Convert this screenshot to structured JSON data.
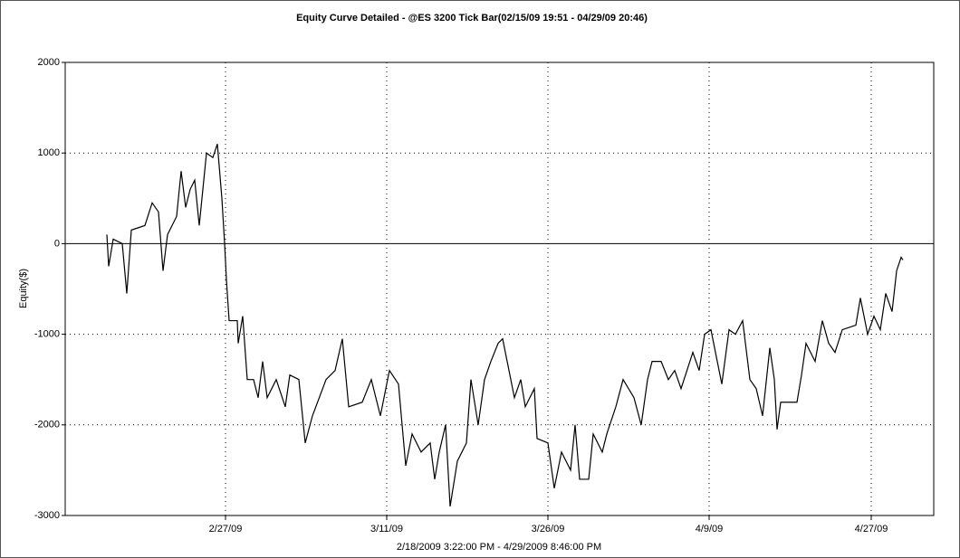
{
  "chart_data": {
    "type": "line",
    "title": "Equity Curve Detailed - @ES 3200 Tick Bar(02/15/09 19:51 - 04/29/09 20:46)",
    "xlabel": "2/18/2009 3:22:00 PM - 4/29/2009 8:46:00 PM",
    "ylabel": "Equity($)",
    "xlim": [
      0,
      959
    ],
    "xticks": [
      {
        "value": 177,
        "label": "2/27/09"
      },
      {
        "value": 355,
        "label": "3/11/09"
      },
      {
        "value": 533,
        "label": "3/26/09"
      },
      {
        "value": 711,
        "label": "4/9/09"
      },
      {
        "value": 890,
        "label": "4/27/09"
      }
    ],
    "ylim": [
      -3000,
      2000
    ],
    "yticks": [
      -3000,
      -2000,
      -1000,
      0,
      1000,
      2000
    ],
    "grid": true,
    "zero_line": true,
    "series": [
      {
        "name": "Equity",
        "color": "#000000",
        "x": [
          46,
          48,
          53,
          63,
          68,
          73,
          88,
          96,
          103,
          108,
          113,
          123,
          128,
          133,
          138,
          143,
          148,
          156,
          163,
          168,
          173,
          176,
          178,
          181,
          190,
          191,
          196,
          201,
          208,
          213,
          218,
          223,
          233,
          243,
          248,
          258,
          265,
          273,
          288,
          298,
          306,
          313,
          328,
          338,
          348,
          358,
          368,
          376,
          383,
          393,
          403,
          408,
          413,
          420,
          425,
          433,
          443,
          448,
          456,
          463,
          470,
          478,
          483,
          488,
          496,
          503,
          508,
          518,
          521,
          533,
          540,
          548,
          558,
          563,
          568,
          578,
          583,
          593,
          598,
          608,
          616,
          628,
          636,
          643,
          648,
          658,
          666,
          673,
          680,
          693,
          700,
          706,
          713,
          720,
          725,
          733,
          740,
          748,
          756,
          763,
          770,
          778,
          783,
          786,
          790,
          808,
          813,
          818,
          828,
          836,
          843,
          850,
          858,
          873,
          878,
          886,
          893,
          900,
          906,
          913,
          918,
          923,
          925
        ],
        "values": [
          100,
          -250,
          50,
          0,
          -550,
          150,
          200,
          450,
          350,
          -300,
          100,
          300,
          800,
          400,
          600,
          700,
          200,
          1000,
          950,
          1100,
          500,
          0,
          -400,
          -850,
          -850,
          -1100,
          -800,
          -1500,
          -1500,
          -1700,
          -1300,
          -1700,
          -1500,
          -1800,
          -1450,
          -1500,
          -2200,
          -1900,
          -1500,
          -1400,
          -1050,
          -1800,
          -1750,
          -1500,
          -1900,
          -1400,
          -1550,
          -2450,
          -2100,
          -2300,
          -2200,
          -2600,
          -2300,
          -2000,
          -2900,
          -2400,
          -2200,
          -1500,
          -2000,
          -1500,
          -1300,
          -1100,
          -1050,
          -1300,
          -1700,
          -1500,
          -1800,
          -1600,
          -2150,
          -2200,
          -2700,
          -2300,
          -2500,
          -2000,
          -2600,
          -2600,
          -2100,
          -2300,
          -2100,
          -1800,
          -1500,
          -1700,
          -2000,
          -1500,
          -1300,
          -1300,
          -1500,
          -1400,
          -1600,
          -1200,
          -1400,
          -1000,
          -950,
          -1300,
          -1550,
          -950,
          -1000,
          -850,
          -1500,
          -1600,
          -1900,
          -1150,
          -1500,
          -2050,
          -1750,
          -1750,
          -1450,
          -1100,
          -1300,
          -850,
          -1100,
          -1200,
          -950,
          -900,
          -600,
          -1000,
          -800,
          -950,
          -550,
          -750,
          -300,
          -150,
          -180
        ]
      }
    ]
  }
}
